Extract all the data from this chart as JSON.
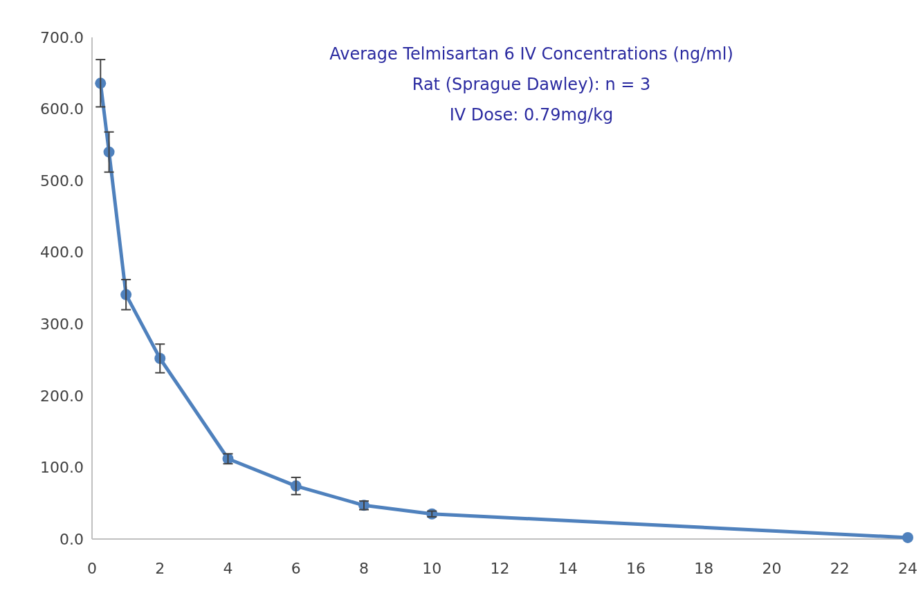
{
  "chart_data": {
    "type": "line",
    "title": "Average Telmisartan 6 IV Concentrations (ng/ml)",
    "subtitle": "Rat (Sprague Dawley): n = 3",
    "annotations": [
      "IV Dose: 0.79mg/kg"
    ],
    "x": [
      0.25,
      0.5,
      1,
      2,
      4,
      6,
      8,
      10,
      24
    ],
    "series": [
      {
        "color": "#4f81bd",
        "values": [
          636,
          540,
          341,
          252,
          112,
          74,
          47,
          35,
          2
        ],
        "errors": [
          33,
          28,
          21,
          20,
          7,
          12,
          6,
          4,
          null
        ]
      }
    ],
    "xlim": [
      0,
      24
    ],
    "xticks": [
      0,
      2,
      4,
      6,
      8,
      10,
      12,
      14,
      16,
      18,
      20,
      22,
      24
    ],
    "ylim": [
      0,
      700
    ],
    "yticks": [
      {
        "value": 0,
        "label": "0.0"
      },
      {
        "value": 100,
        "label": "100.0"
      },
      {
        "value": 200,
        "label": "200.0"
      },
      {
        "value": 300,
        "label": "300.0"
      },
      {
        "value": 400,
        "label": "400.0"
      },
      {
        "value": 500,
        "label": "500.0"
      },
      {
        "value": 600,
        "label": "600.0"
      },
      {
        "value": 700,
        "label": "700.0"
      }
    ],
    "grid": false,
    "marker": "circle",
    "line_style": "solid"
  }
}
